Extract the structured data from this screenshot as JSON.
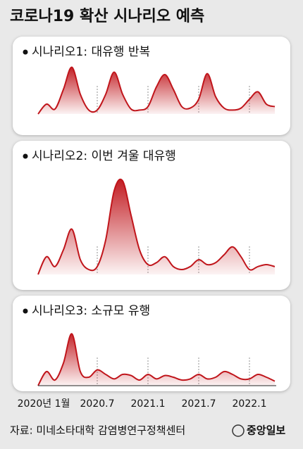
{
  "title": "코로나19 확산 시나리오 예측",
  "chart_data": [
    {
      "type": "area",
      "title": "시나리오1: 대유행 반복",
      "color": "#c0151b",
      "ylim": [
        0,
        100
      ],
      "values": [
        0,
        20,
        10,
        50,
        95,
        40,
        8,
        8,
        40,
        85,
        40,
        10,
        8,
        15,
        55,
        80,
        50,
        15,
        12,
        30,
        82,
        35,
        12,
        8,
        12,
        30,
        45,
        20,
        15
      ]
    },
    {
      "type": "area",
      "title": "시나리오2: 이번 겨울 대유행",
      "color": "#c0151b",
      "ylim": [
        0,
        100
      ],
      "values": [
        0,
        18,
        8,
        25,
        46,
        15,
        5,
        8,
        35,
        85,
        95,
        60,
        25,
        10,
        12,
        18,
        8,
        5,
        8,
        15,
        10,
        12,
        20,
        28,
        18,
        5,
        8,
        10,
        8
      ]
    },
    {
      "type": "area",
      "title": "시나리오3: 소규모 유행",
      "color": "#c0151b",
      "ylim": [
        0,
        100
      ],
      "values": [
        0,
        25,
        10,
        40,
        92,
        25,
        15,
        28,
        20,
        12,
        20,
        18,
        10,
        20,
        12,
        18,
        15,
        10,
        12,
        20,
        12,
        15,
        25,
        20,
        12,
        12,
        20,
        15,
        8
      ],
      "categories": [
        null,
        "2020년 1월",
        null,
        null,
        null,
        null,
        null,
        "2020.7",
        null,
        null,
        null,
        null,
        null,
        "2021.1",
        null,
        null,
        null,
        null,
        null,
        "2021.7",
        null,
        null,
        null,
        null,
        null,
        "2022.1",
        null,
        null,
        null
      ]
    }
  ],
  "source": "자료: 미네소타대학 감염병연구정책센터",
  "logo": "중앙일보"
}
